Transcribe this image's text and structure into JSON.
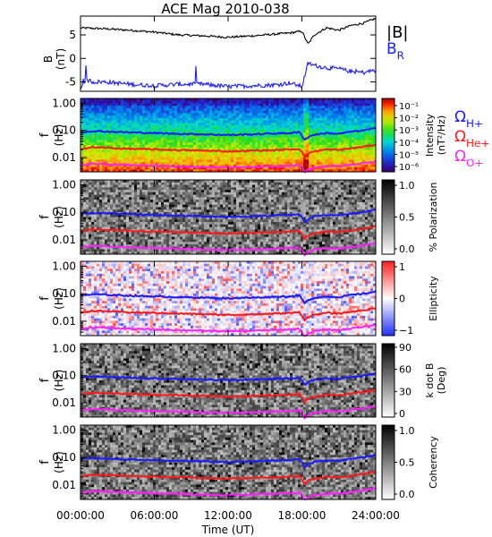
{
  "title": "ACE Mag 2010-038",
  "colors": {
    "B_total": "#000000",
    "B_R": "#1a1aff",
    "omega_Hplus": "#1a1aff",
    "omega_HeHplus": "#ff1a1a",
    "omega_Oplus": "#ff22ff"
  },
  "chart_data": [
    {
      "type": "line",
      "name": "magnetic-field",
      "ylabel_line1": "B",
      "ylabel_line2": "(nT)",
      "y_ticks": [
        "5",
        "0",
        "-5"
      ],
      "ylim": [
        -7,
        9
      ],
      "legend": [
        {
          "label": "|B|",
          "color": "#000000"
        },
        {
          "label": "B",
          "sub": "R",
          "color": "#1a1aff"
        }
      ],
      "series": [
        {
          "name": "|B|",
          "x": [
            0,
            2,
            4,
            6,
            8,
            10,
            12,
            14,
            16,
            17,
            18,
            18.5,
            19,
            20,
            21,
            22,
            23,
            24
          ],
          "values": [
            6.5,
            6.3,
            6.0,
            5.6,
            5.0,
            4.8,
            4.5,
            4.8,
            5.2,
            5.4,
            5.8,
            3.0,
            5.0,
            6.5,
            6.0,
            7.0,
            7.5,
            8.5
          ]
        },
        {
          "name": "B_R",
          "x": [
            0,
            0.5,
            1,
            2,
            4,
            6,
            8,
            10,
            12,
            14,
            16,
            17,
            18,
            18.5,
            19,
            20,
            21,
            22,
            23,
            24
          ],
          "values": [
            -6.5,
            -4.5,
            -5.0,
            -5.0,
            -5.5,
            -5.8,
            -5.5,
            -5.5,
            -6.0,
            -5.8,
            -5.6,
            -5.2,
            -6.0,
            -1.0,
            -1.5,
            -2.0,
            -2.2,
            -2.8,
            -3.0,
            -2.5
          ]
        }
      ]
    },
    {
      "type": "heatmap",
      "name": "intensity",
      "ylabel_line1": "f",
      "ylabel_line2": "(Hz)",
      "colorbar_label_line1": "Intensity",
      "colorbar_label_line2": "(nT²/Hz)",
      "colorbar_ticks": [
        "10⁻¹",
        "10⁻²",
        "10⁻³",
        "10⁻⁴",
        "10⁻⁵",
        "10⁻⁶"
      ],
      "legend": [
        {
          "label": "Ω",
          "sub": "H+",
          "color": "#1a1aff"
        },
        {
          "label": "Ω",
          "sub": "He+",
          "color": "#ff1a1a"
        },
        {
          "label": "Ω",
          "sub": "O+",
          "color": "#ff22ff"
        }
      ]
    },
    {
      "type": "heatmap",
      "name": "polarization",
      "ylabel_line1": "f",
      "ylabel_line2": "(Hz)",
      "colorbar_label_line1": "% Polarization",
      "colorbar_label_line2": "",
      "colorbar_ticks": [
        "1.0",
        "0.5",
        "0.0"
      ]
    },
    {
      "type": "heatmap",
      "name": "ellipticity",
      "ylabel_line1": "f",
      "ylabel_line2": "(Hz)",
      "colorbar_label_line1": "Ellipticity",
      "colorbar_label_line2": "",
      "colorbar_ticks": [
        "1",
        "0",
        "−1"
      ]
    },
    {
      "type": "heatmap",
      "name": "k-dot-b",
      "ylabel_line1": "f",
      "ylabel_line2": "(Hz)",
      "colorbar_label_line1": "k dot B",
      "colorbar_label_line2": "(Deg)",
      "colorbar_ticks": [
        "90",
        "60",
        "30",
        "0"
      ]
    },
    {
      "type": "heatmap",
      "name": "coherency",
      "ylabel_line1": "f",
      "ylabel_line2": "(Hz)",
      "colorbar_label_line1": "Coherency",
      "colorbar_label_line2": "",
      "colorbar_ticks": [
        "1.0",
        "0.5",
        "0.0"
      ]
    }
  ],
  "freq_axis": {
    "ticks": [
      "1.00",
      "0.10",
      "0.01"
    ],
    "ylim_hz": [
      0.003,
      1.5
    ],
    "scale": "log"
  },
  "cyclotron_lines": {
    "x": [
      0,
      1,
      2,
      3,
      4,
      6,
      8,
      10,
      12,
      14,
      16,
      17,
      17.8,
      18.2,
      18.6,
      19,
      20,
      21,
      22,
      23,
      24
    ],
    "omega_Hplus": [
      0.085,
      0.095,
      0.092,
      0.088,
      0.085,
      0.08,
      0.075,
      0.072,
      0.068,
      0.072,
      0.078,
      0.08,
      0.085,
      0.045,
      0.06,
      0.07,
      0.08,
      0.075,
      0.09,
      0.1,
      0.12
    ],
    "omega_HeHplus": [
      0.021,
      0.024,
      0.023,
      0.022,
      0.021,
      0.02,
      0.019,
      0.018,
      0.017,
      0.018,
      0.019,
      0.02,
      0.021,
      0.011,
      0.015,
      0.017,
      0.02,
      0.019,
      0.022,
      0.025,
      0.03
    ],
    "omega_Oplus": [
      0.0053,
      0.006,
      0.0058,
      0.0055,
      0.0053,
      0.005,
      0.0048,
      0.0045,
      0.0043,
      0.0045,
      0.0048,
      0.005,
      0.0053,
      0.0028,
      0.0038,
      0.0043,
      0.005,
      0.0048,
      0.0055,
      0.0063,
      0.0075
    ]
  },
  "time_axis": {
    "ticks": [
      "00:00:00",
      "06:00:00",
      "12:00:00",
      "18:00:00",
      "24:00:00"
    ],
    "tick_hours": [
      0,
      6,
      12,
      18,
      24
    ],
    "label": "Time (UT)",
    "xlim_hours": [
      0,
      24
    ]
  }
}
